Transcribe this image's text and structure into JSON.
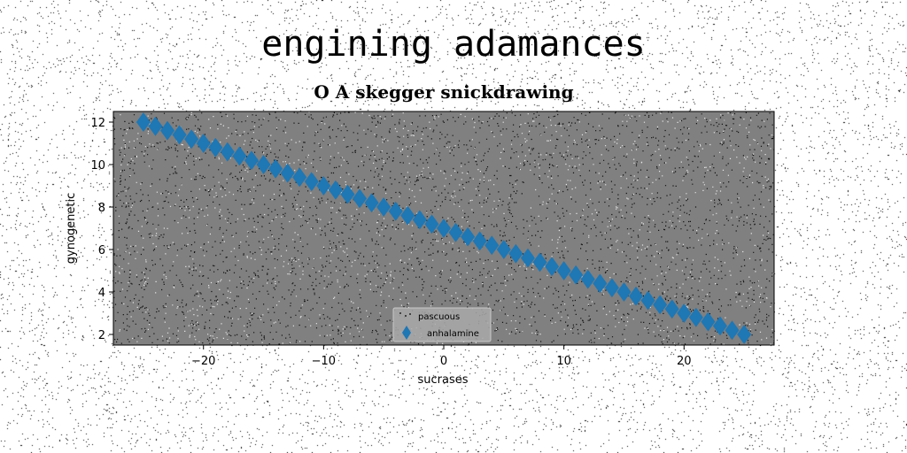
{
  "suptitle": "engining adamances",
  "chart_data": {
    "type": "scatter",
    "title": "O A skegger snickdrawing",
    "xlabel": "sucrases",
    "ylabel": "gynogenetic",
    "xlim": [
      -27.5,
      27.5
    ],
    "ylim": [
      1.5,
      12.5
    ],
    "xticks": [
      -20,
      -10,
      0,
      10,
      20
    ],
    "xtick_labels": [
      "−20",
      "−10",
      "0",
      "10",
      "20"
    ],
    "yticks": [
      2,
      4,
      6,
      8,
      10,
      12
    ],
    "ytick_labels": [
      "2",
      "4",
      "6",
      "8",
      "10",
      "12"
    ],
    "grid": false,
    "legend_position": "lower center",
    "background_color": "#808080",
    "series": [
      {
        "name": "pascuous",
        "marker": "point",
        "color": "#000000",
        "note": "scattered noise points"
      },
      {
        "name": "anhalamine",
        "marker": "diamond",
        "color": "#1f77b4",
        "x": [
          -25,
          -24,
          -23,
          -22,
          -21,
          -20,
          -19,
          -18,
          -17,
          -16,
          -15,
          -14,
          -13,
          -12,
          -11,
          -10,
          -9,
          -8,
          -7,
          -6,
          -5,
          -4,
          -3,
          -2,
          -1,
          0,
          1,
          2,
          3,
          4,
          5,
          6,
          7,
          8,
          9,
          10,
          11,
          12,
          13,
          14,
          15,
          16,
          17,
          18,
          19,
          20,
          21,
          22,
          23,
          24,
          25
        ],
        "y": [
          12.0,
          11.8,
          11.6,
          11.4,
          11.2,
          11.0,
          10.8,
          10.6,
          10.4,
          10.2,
          10.0,
          9.8,
          9.6,
          9.4,
          9.2,
          9.0,
          8.8,
          8.6,
          8.4,
          8.2,
          8.0,
          7.8,
          7.6,
          7.4,
          7.2,
          7.0,
          6.8,
          6.6,
          6.4,
          6.2,
          6.0,
          5.8,
          5.6,
          5.4,
          5.2,
          5.0,
          4.8,
          4.6,
          4.4,
          4.2,
          4.0,
          3.8,
          3.6,
          3.4,
          3.2,
          3.0,
          2.8,
          2.6,
          2.4,
          2.2,
          2.0
        ]
      }
    ]
  }
}
